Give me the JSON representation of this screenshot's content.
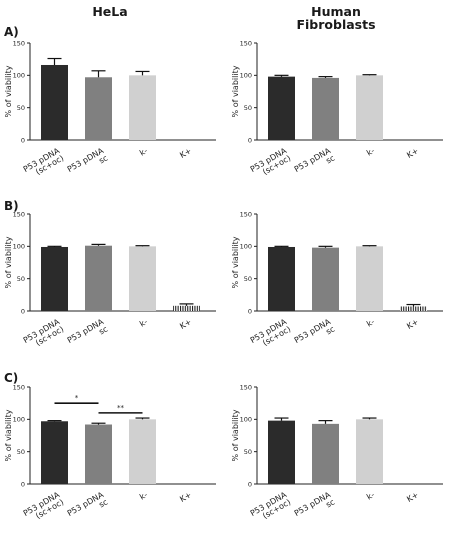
{
  "figure": {
    "column_titles": [
      [
        "HeLa"
      ],
      [
        "Human",
        "Fibroblasts"
      ]
    ],
    "row_labels": [
      "A)",
      "B)",
      "C)"
    ]
  },
  "chart_data": [
    {
      "id": "A-HeLa",
      "type": "bar",
      "row": 0,
      "col": 0,
      "ylabel": "% of viability",
      "ylim": [
        0,
        150
      ],
      "yticks": [
        0,
        50,
        100,
        150
      ],
      "categories": [
        [
          "P53 pDNA",
          "(sc+oc)"
        ],
        [
          "P53 pDNA",
          "sc"
        ],
        [
          "k-"
        ],
        [
          "K+"
        ]
      ],
      "values": [
        116,
        97,
        100,
        0
      ],
      "errors": [
        10,
        10,
        6,
        0
      ],
      "colors": [
        "#2b2b2b",
        "#808080",
        "#d0d0d0",
        "hatch"
      ],
      "significance": []
    },
    {
      "id": "A-Fibroblasts",
      "type": "bar",
      "row": 0,
      "col": 1,
      "ylabel": "% of viability",
      "ylim": [
        0,
        150
      ],
      "yticks": [
        0,
        50,
        100,
        150
      ],
      "categories": [
        [
          "P53 pDNA",
          "(sc+oc)"
        ],
        [
          "P53 pDNA",
          "sc"
        ],
        [
          "k-"
        ],
        [
          "K+"
        ]
      ],
      "values": [
        98,
        96,
        100,
        0
      ],
      "errors": [
        2,
        2,
        1,
        0
      ],
      "colors": [
        "#2b2b2b",
        "#808080",
        "#d0d0d0",
        "hatch"
      ],
      "significance": []
    },
    {
      "id": "B-HeLa",
      "type": "bar",
      "row": 1,
      "col": 0,
      "ylabel": "% of viability",
      "ylim": [
        0,
        150
      ],
      "yticks": [
        0,
        50,
        100,
        150
      ],
      "categories": [
        [
          "P53 pDNA",
          "(sc+oc)"
        ],
        [
          "P53 pDNA",
          "sc"
        ],
        [
          "k-"
        ],
        [
          "K+"
        ]
      ],
      "values": [
        99,
        101,
        100,
        8
      ],
      "errors": [
        1,
        2,
        1,
        3
      ],
      "colors": [
        "#2b2b2b",
        "#808080",
        "#d0d0d0",
        "hatch"
      ],
      "significance": []
    },
    {
      "id": "B-Fibroblasts",
      "type": "bar",
      "row": 1,
      "col": 1,
      "ylabel": "% of viability",
      "ylim": [
        0,
        150
      ],
      "yticks": [
        0,
        50,
        100,
        150
      ],
      "categories": [
        [
          "P53 pDNA",
          "(sc+oc)"
        ],
        [
          "P53 pDNA",
          "sc"
        ],
        [
          "k-"
        ],
        [
          "K+"
        ]
      ],
      "values": [
        99,
        98,
        100,
        7
      ],
      "errors": [
        1,
        2,
        1,
        3
      ],
      "colors": [
        "#2b2b2b",
        "#808080",
        "#d0d0d0",
        "hatch"
      ],
      "significance": []
    },
    {
      "id": "C-HeLa",
      "type": "bar",
      "row": 2,
      "col": 0,
      "ylabel": "% of viability",
      "ylim": [
        0,
        150
      ],
      "yticks": [
        0,
        50,
        100,
        150
      ],
      "categories": [
        [
          "P53 pDNA",
          "(sc+oc)"
        ],
        [
          "P53 pDNA",
          "sc"
        ],
        [
          "k-"
        ],
        [
          "K+"
        ]
      ],
      "values": [
        97,
        92,
        100,
        0
      ],
      "errors": [
        1,
        2,
        2,
        0
      ],
      "colors": [
        "#2b2b2b",
        "#808080",
        "#d0d0d0",
        "hatch"
      ],
      "significance": [
        {
          "from": 0,
          "to": 1,
          "label": "*",
          "y": 125
        },
        {
          "from": 1,
          "to": 2,
          "label": "**",
          "y": 110
        }
      ]
    },
    {
      "id": "C-Fibroblasts",
      "type": "bar",
      "row": 2,
      "col": 1,
      "ylabel": "% of viability",
      "ylim": [
        0,
        150
      ],
      "yticks": [
        0,
        50,
        100,
        150
      ],
      "categories": [
        [
          "P53 pDNA",
          "(sc+oc)"
        ],
        [
          "P53 pDNA",
          "sc"
        ],
        [
          "k-"
        ],
        [
          "K+"
        ]
      ],
      "values": [
        98,
        93,
        100,
        0
      ],
      "errors": [
        4,
        5,
        2,
        0
      ],
      "colors": [
        "#2b2b2b",
        "#808080",
        "#d0d0d0",
        "hatch"
      ],
      "significance": []
    }
  ]
}
